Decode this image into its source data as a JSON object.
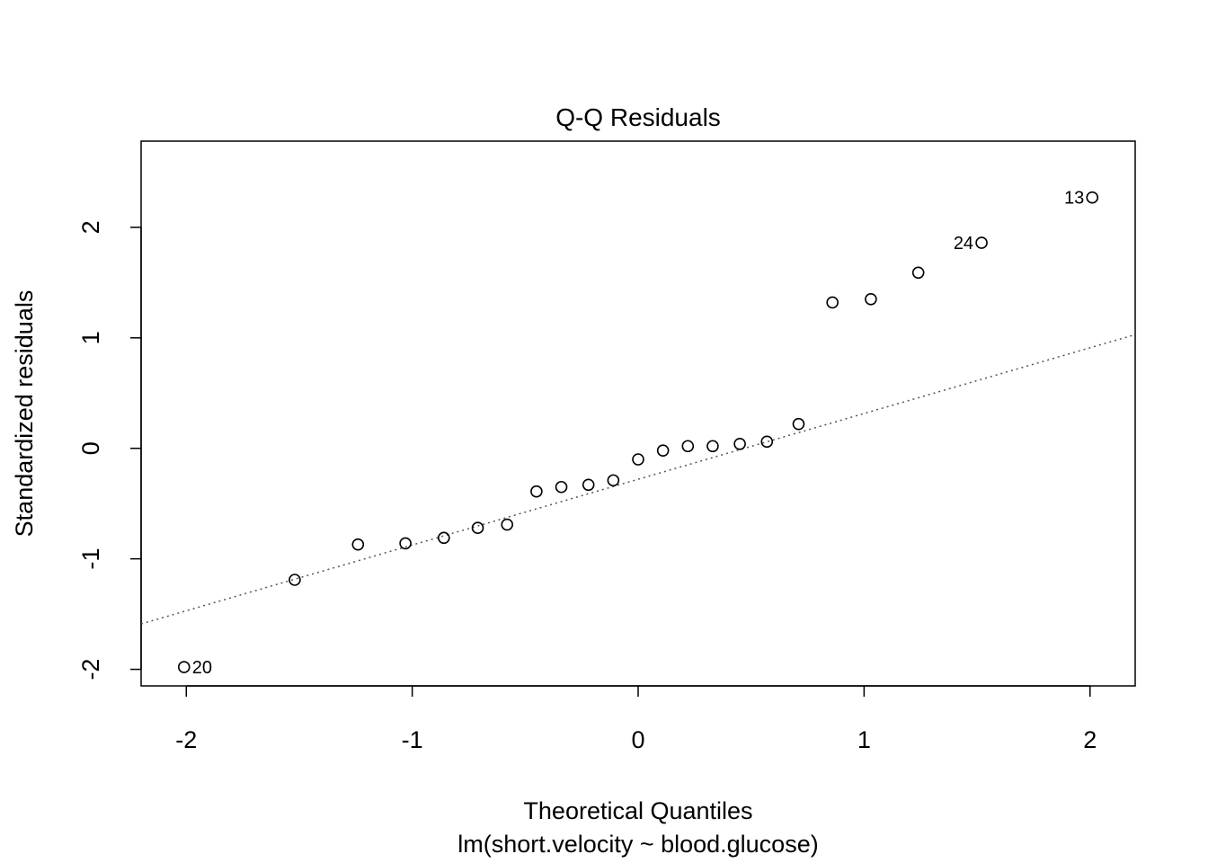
{
  "chart_data": {
    "type": "scatter",
    "title": "Q-Q Residuals",
    "xlabel": "Theoretical Quantiles",
    "subtitle": "lm(short.velocity ~ blood.glucose)",
    "ylabel": "Standardized residuals",
    "xlim": [
      -2.2,
      2.2
    ],
    "ylim": [
      -2.15,
      2.78
    ],
    "x_ticks": [
      -2,
      -1,
      0,
      1,
      2
    ],
    "y_ticks": [
      -2,
      -1,
      0,
      1,
      2
    ],
    "reference_line": {
      "style": "dotted",
      "intercept": -0.28,
      "slope": 0.595
    },
    "points": [
      {
        "x": -2.01,
        "y": -1.98,
        "label": "20"
      },
      {
        "x": -1.52,
        "y": -1.19
      },
      {
        "x": -1.24,
        "y": -0.87
      },
      {
        "x": -1.03,
        "y": -0.86
      },
      {
        "x": -0.86,
        "y": -0.81
      },
      {
        "x": -0.71,
        "y": -0.72
      },
      {
        "x": -0.58,
        "y": -0.69
      },
      {
        "x": -0.45,
        "y": -0.39
      },
      {
        "x": -0.34,
        "y": -0.35
      },
      {
        "x": -0.22,
        "y": -0.33
      },
      {
        "x": -0.11,
        "y": -0.29
      },
      {
        "x": 0.0,
        "y": -0.1
      },
      {
        "x": 0.11,
        "y": -0.02
      },
      {
        "x": 0.22,
        "y": 0.02
      },
      {
        "x": 0.33,
        "y": 0.02
      },
      {
        "x": 0.45,
        "y": 0.04
      },
      {
        "x": 0.57,
        "y": 0.06
      },
      {
        "x": 0.71,
        "y": 0.22
      },
      {
        "x": 0.86,
        "y": 1.32
      },
      {
        "x": 1.03,
        "y": 1.35
      },
      {
        "x": 1.24,
        "y": 1.59
      },
      {
        "x": 1.52,
        "y": 1.86,
        "label": "24"
      },
      {
        "x": 2.01,
        "y": 2.27,
        "label": "13"
      }
    ]
  }
}
